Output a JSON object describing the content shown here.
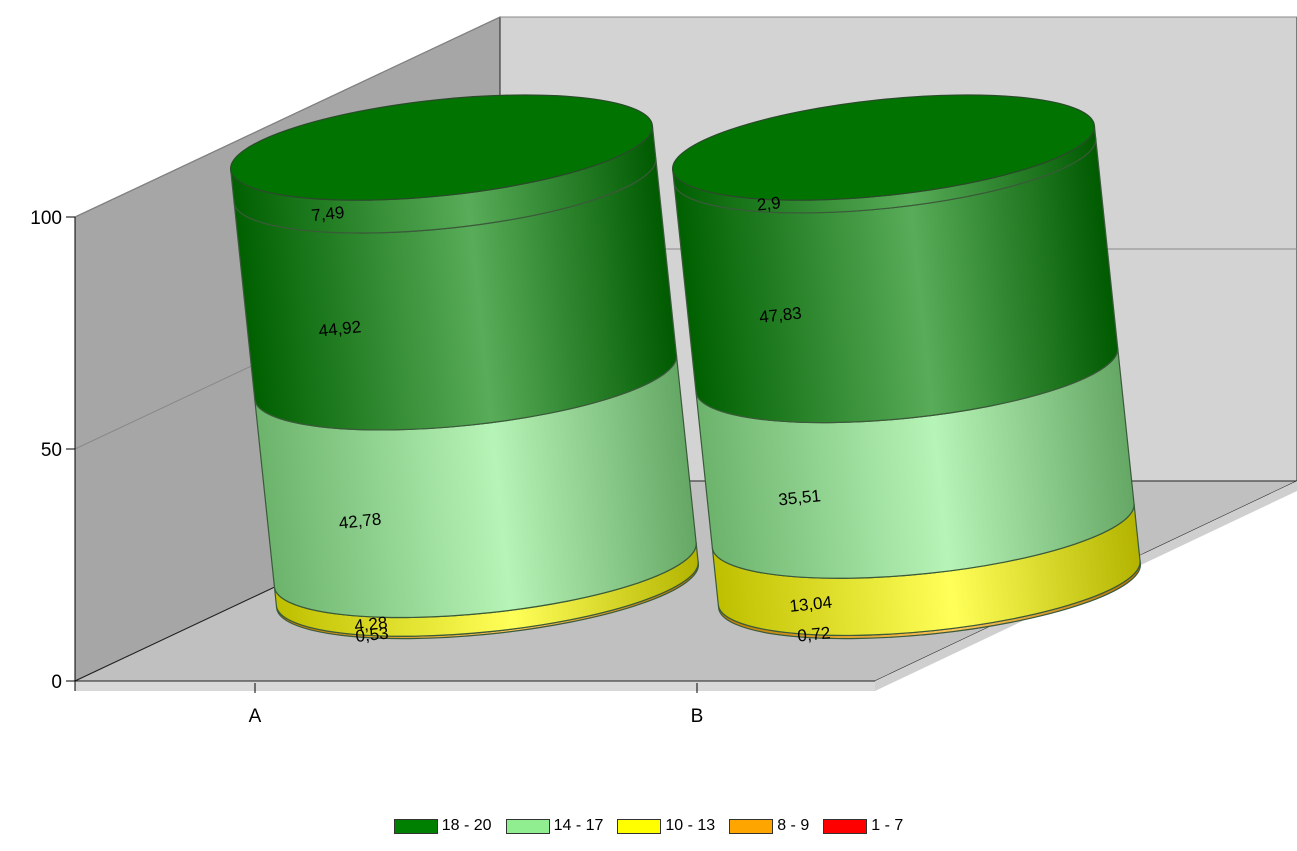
{
  "chart_data": {
    "type": "bar",
    "stacked": true,
    "style": "3d-cylinder",
    "categories": [
      "A",
      "B"
    ],
    "y_ticks": [
      "0",
      "50",
      "100"
    ],
    "ylim": [
      0,
      100
    ],
    "grid": true,
    "legend_position": "bottom",
    "series": [
      {
        "name": "1 - 7",
        "color": "#ff0000",
        "values": [
          0,
          0
        ],
        "labels": [
          "",
          ""
        ]
      },
      {
        "name": "8 - 9",
        "color": "#ffa500",
        "values": [
          0.53,
          0.72
        ],
        "labels": [
          "0,53",
          "0,72"
        ]
      },
      {
        "name": "10 - 13",
        "color": "#ffff00",
        "values": [
          4.28,
          13.04
        ],
        "labels": [
          "4,28",
          "13,04"
        ]
      },
      {
        "name": "14 - 17",
        "color": "#90ee90",
        "values": [
          42.78,
          35.51
        ],
        "labels": [
          "42,78",
          "35,51"
        ]
      },
      {
        "name": "18 - 20",
        "color": "#008000",
        "values": [
          44.92,
          47.83
        ],
        "labels": [
          "44,92",
          "47,83"
        ]
      },
      {
        "name": "",
        "color": "#008000",
        "values": [
          7.49,
          2.9
        ],
        "labels": [
          "7,49",
          "2,9"
        ]
      }
    ],
    "legend": [
      {
        "name": "18 - 20",
        "color": "#008000"
      },
      {
        "name": "14 - 17",
        "color": "#90ee90"
      },
      {
        "name": "10 - 13",
        "color": "#ffff00"
      },
      {
        "name": "8 - 9",
        "color": "#ffa500"
      },
      {
        "name": "1 - 7",
        "color": "#ff0000"
      }
    ]
  }
}
